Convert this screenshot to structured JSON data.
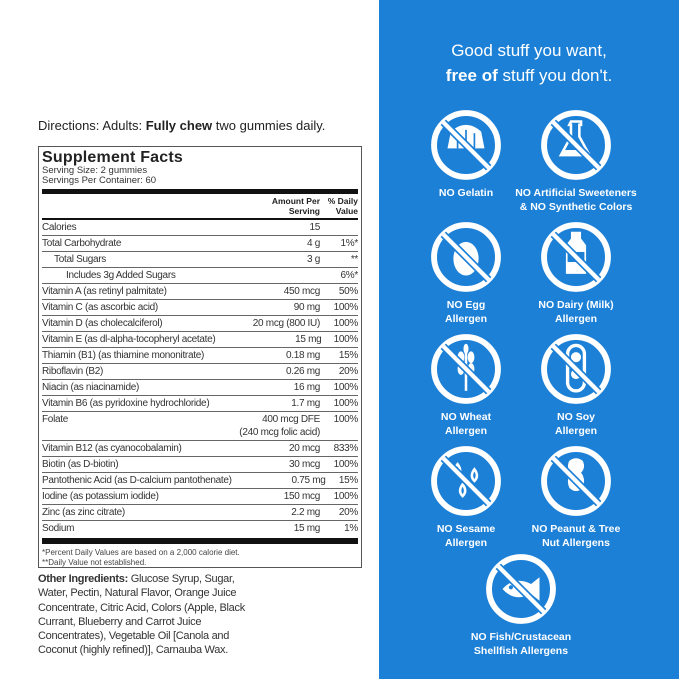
{
  "directions": {
    "label": "Directions:",
    "who": "Adults:",
    "bold": "Fully chew",
    "rest": "two gummies daily."
  },
  "facts": {
    "title": "Supplement Facts",
    "serving_size": "Serving Size: 2 gummies",
    "servings": "Servings Per Container: 60",
    "col_amount": [
      "Amount Per",
      "Serving"
    ],
    "col_dv": [
      "% Daily",
      "Value"
    ],
    "rows": [
      {
        "name": "Calories",
        "amount": "15",
        "dv": ""
      },
      {
        "name": "Total Carbohydrate",
        "amount": "4 g",
        "dv": "1%*"
      },
      {
        "name": "Total Sugars",
        "amount": "3 g",
        "dv": "**",
        "indent": 1
      },
      {
        "name": "Includes 3g Added Sugars",
        "amount": "",
        "dv": "6%*",
        "indent": 2
      },
      {
        "name": "Vitamin A (as retinyl palmitate)",
        "amount": "450 mcg",
        "dv": "50%"
      },
      {
        "name": "Vitamin C (as ascorbic acid)",
        "amount": "90 mg",
        "dv": "100%"
      },
      {
        "name": "Vitamin D (as cholecalciferol)",
        "amount": "20 mcg (800 IU)",
        "dv": "100%"
      },
      {
        "name": "Vitamin E (as dl-alpha-tocopheryl acetate)",
        "amount": "15 mg",
        "dv": "100%"
      },
      {
        "name": "Thiamin (B1) (as thiamine mononitrate)",
        "amount": "0.18 mg",
        "dv": "15%"
      },
      {
        "name": "Riboflavin (B2)",
        "amount": "0.26 mg",
        "dv": "20%"
      },
      {
        "name": "Niacin (as niacinamide)",
        "amount": "16 mg",
        "dv": "100%"
      },
      {
        "name": "Vitamin B6 (as pyridoxine hydrochloride)",
        "amount": "1.7 mg",
        "dv": "100%"
      },
      {
        "name": "Folate",
        "amount": "400 mcg DFE",
        "amount2": "(240 mcg folic acid)",
        "dv": "100%"
      },
      {
        "name": "Vitamin B12 (as cyanocobalamin)",
        "amount": "20 mcg",
        "dv": "833%"
      },
      {
        "name": "Biotin (as D-biotin)",
        "amount": "30 mcg",
        "dv": "100%"
      },
      {
        "name": "Pantothenic Acid (as D-calcium pantothenate)",
        "amount": "0.75 mg",
        "dv": "15%"
      },
      {
        "name": "Iodine (as potassium iodide)",
        "amount": "150 mcg",
        "dv": "100%"
      },
      {
        "name": "Zinc (as zinc citrate)",
        "amount": "2.2 mg",
        "dv": "20%"
      },
      {
        "name": "Sodium",
        "amount": "15 mg",
        "dv": "1%"
      }
    ],
    "footnote1": "*Percent Daily Values are based on a 2,000 calorie diet.",
    "footnote2": "**Daily Value not established."
  },
  "ingredients": {
    "label": "Other Ingredients:",
    "text": " Glucose Syrup, Sugar, Water, Pectin, Natural Flavor, Orange Juice Concentrate, Citric Acid, Colors (Apple, Black Currant, Blueberry and Carrot Juice Concentrates), Vegetable Oil [Canola and Coconut (highly refined)], Carnauba Wax."
  },
  "panel": {
    "bg": "#1c80d7",
    "line1": "Good stuff you want,",
    "line2_bold": "free of",
    "line2_rest": " stuff you don't.",
    "badges": [
      {
        "icon": "gelatin-icon",
        "l1": "NO Gelatin",
        "l2": ""
      },
      {
        "icon": "flask-icon",
        "l1": "NO Artificial Sweeteners",
        "l2": "& NO Synthetic Colors"
      },
      {
        "icon": "egg-icon",
        "l1": "NO Egg",
        "l2": "Allergen"
      },
      {
        "icon": "milk-bottle-icon",
        "l1": "NO Dairy (Milk)",
        "l2": "Allergen"
      },
      {
        "icon": "wheat-icon",
        "l1": "NO Wheat",
        "l2": "Allergen"
      },
      {
        "icon": "soybean-icon",
        "l1": "NO Soy",
        "l2": "Allergen"
      },
      {
        "icon": "sesame-icon",
        "l1": "NO Sesame",
        "l2": "Allergen"
      },
      {
        "icon": "peanut-icon",
        "l1": "NO Peanut & Tree",
        "l2": "Nut Allergens"
      },
      {
        "icon": "fish-icon",
        "l1": "NO Fish/Crustacean",
        "l2": "Shellfish Allergens"
      }
    ]
  }
}
